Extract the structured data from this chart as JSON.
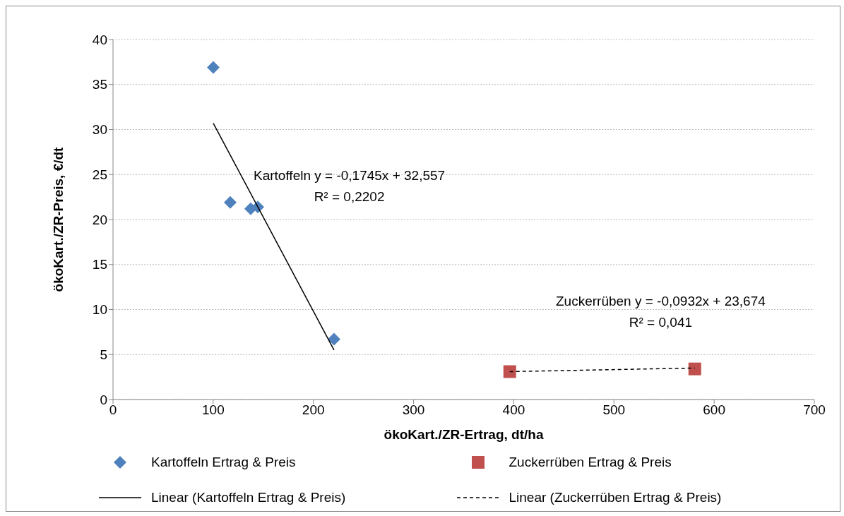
{
  "chart_data": {
    "type": "scatter",
    "xlabel": "ökoKart./ZR-Ertrag, dt/ha",
    "ylabel": "ökoKart./ZR-Preis, €/dt",
    "xlim": [
      0,
      700
    ],
    "xticks": [
      0,
      100,
      200,
      300,
      400,
      500,
      600,
      700
    ],
    "ylim": [
      0,
      40
    ],
    "yticks": [
      0,
      5,
      10,
      15,
      20,
      25,
      30,
      35,
      40
    ],
    "grid": "y",
    "legend": "bottom",
    "series": [
      {
        "name": "Kartoffeln Ertrag & Preis",
        "type": "scatter",
        "marker": "diamond",
        "color": "#4f81bd",
        "x": [
          100.1,
          117,
          137.4,
          144.5,
          220.6
        ],
        "values": [
          36.9,
          21.9,
          21.2,
          21.4,
          6.7
        ]
      },
      {
        "name": "Zuckerrüben Ertrag & Preis",
        "type": "scatter",
        "marker": "square",
        "color": "#c0504d",
        "x": [
          396,
          580.7
        ],
        "values": [
          3.1,
          3.4
        ]
      },
      {
        "name": "Linear (Kartoffeln Ertrag & Preis)",
        "type": "line",
        "marker": "none",
        "line_style": "solid",
        "color": "#000000",
        "x": [
          100.1,
          220.6
        ],
        "values": [
          30.7,
          5.5
        ]
      },
      {
        "name": "Linear (Zuckerrüben Ertrag & Preis)",
        "type": "line",
        "marker": "none",
        "line_style": "dashed",
        "color": "#000000",
        "x": [
          396,
          580.7
        ],
        "values": [
          3.1,
          3.5
        ]
      }
    ],
    "annotations": [
      "Kartoffeln y = -0,1745x + 32,557\nR² = 0,2202",
      "Zuckerrüben y = -0,0932x + 23,674\nR² = 0,041"
    ]
  }
}
